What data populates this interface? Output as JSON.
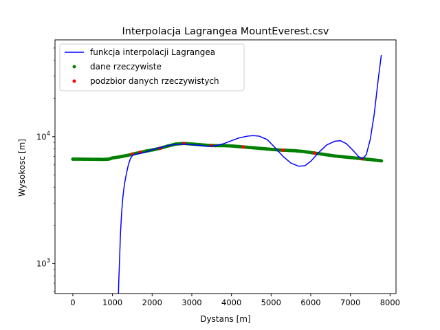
{
  "chart_data": {
    "type": "line",
    "title": "Interpolacja Lagrangea MountEverest.csv",
    "xlabel": "Dystans [m]",
    "ylabel": "Wysokosc [m]",
    "xlim": [
      -450,
      8150
    ],
    "ylim": [
      580,
      58000
    ],
    "yscale": "log",
    "x_ticks": [
      0,
      1000,
      2000,
      3000,
      4000,
      5000,
      6000,
      7000,
      8000
    ],
    "y_ticks": [
      {
        "value": 1000,
        "base": "10",
        "exp": "3"
      },
      {
        "value": 10000,
        "base": "10",
        "exp": "4"
      }
    ],
    "y_minor_ticks": [
      600,
      700,
      800,
      900,
      2000,
      3000,
      4000,
      5000,
      6000,
      7000,
      8000,
      9000,
      20000,
      30000,
      40000,
      50000
    ],
    "legend_position": "top-left",
    "legend": [
      {
        "label": "funkcja interpolacji Lagrangea",
        "marker": "line",
        "color": "#0000ff"
      },
      {
        "label": "dane rzeczywiste",
        "marker": "dot",
        "color": "#008000"
      },
      {
        "label": "podzbior danych rzeczywistych",
        "marker": "dot",
        "color": "#ff0000"
      }
    ],
    "series": [
      {
        "name": "funkcja interpolacji Lagrangea",
        "color": "#0000ff",
        "style": "line",
        "points": [
          [
            1150,
            580
          ],
          [
            1160,
            750
          ],
          [
            1180,
            1100
          ],
          [
            1200,
            1700
          ],
          [
            1230,
            2500
          ],
          [
            1260,
            3300
          ],
          [
            1300,
            4200
          ],
          [
            1350,
            5100
          ],
          [
            1400,
            6000
          ],
          [
            1450,
            6700
          ],
          [
            1500,
            7100
          ],
          [
            1600,
            7300
          ],
          [
            1800,
            7500
          ],
          [
            2000,
            7900
          ],
          [
            2200,
            8200
          ],
          [
            2400,
            8500
          ],
          [
            2600,
            8700
          ],
          [
            2800,
            8750
          ],
          [
            3000,
            8650
          ],
          [
            3200,
            8550
          ],
          [
            3400,
            8400
          ],
          [
            3600,
            8500
          ],
          [
            3800,
            8800
          ],
          [
            4000,
            9300
          ],
          [
            4200,
            9800
          ],
          [
            4400,
            10100
          ],
          [
            4550,
            10200
          ],
          [
            4700,
            10100
          ],
          [
            4900,
            9500
          ],
          [
            5100,
            8200
          ],
          [
            5300,
            7000
          ],
          [
            5500,
            6200
          ],
          [
            5700,
            5850
          ],
          [
            5850,
            5900
          ],
          [
            6000,
            6400
          ],
          [
            6200,
            7500
          ],
          [
            6400,
            8600
          ],
          [
            6600,
            9200
          ],
          [
            6750,
            9300
          ],
          [
            6900,
            8800
          ],
          [
            7050,
            7900
          ],
          [
            7200,
            7000
          ],
          [
            7300,
            6700
          ],
          [
            7400,
            7200
          ],
          [
            7500,
            9500
          ],
          [
            7600,
            15000
          ],
          [
            7700,
            28000
          ],
          [
            7780,
            44000
          ]
        ]
      },
      {
        "name": "dane rzeczywiste",
        "color": "#008000",
        "style": "scatter",
        "points": [
          [
            0,
            6650
          ],
          [
            200,
            6650
          ],
          [
            400,
            6640
          ],
          [
            600,
            6630
          ],
          [
            800,
            6620
          ],
          [
            900,
            6650
          ],
          [
            1000,
            6800
          ],
          [
            1200,
            6950
          ],
          [
            1400,
            7150
          ],
          [
            1600,
            7400
          ],
          [
            1800,
            7650
          ],
          [
            2000,
            7850
          ],
          [
            2200,
            8100
          ],
          [
            2400,
            8450
          ],
          [
            2600,
            8750
          ],
          [
            2800,
            8850
          ],
          [
            3000,
            8750
          ],
          [
            3200,
            8650
          ],
          [
            3400,
            8550
          ],
          [
            3600,
            8500
          ],
          [
            3800,
            8500
          ],
          [
            4000,
            8450
          ],
          [
            4200,
            8350
          ],
          [
            4400,
            8250
          ],
          [
            4600,
            8150
          ],
          [
            4800,
            8050
          ],
          [
            5000,
            7950
          ],
          [
            5200,
            7850
          ],
          [
            5400,
            7800
          ],
          [
            5600,
            7750
          ],
          [
            5800,
            7650
          ],
          [
            6000,
            7500
          ],
          [
            6200,
            7350
          ],
          [
            6400,
            7200
          ],
          [
            6600,
            7050
          ],
          [
            6800,
            6950
          ],
          [
            7000,
            6850
          ],
          [
            7200,
            6750
          ],
          [
            7400,
            6650
          ],
          [
            7600,
            6550
          ],
          [
            7780,
            6450
          ]
        ]
      },
      {
        "name": "podzbior danych rzeczywistych",
        "color": "#ff0000",
        "style": "scatter",
        "points": [
          [
            1500,
            7300
          ],
          [
            1700,
            7550
          ],
          [
            2200,
            8100
          ],
          [
            2800,
            8850
          ],
          [
            3500,
            8520
          ],
          [
            4300,
            8300
          ],
          [
            5300,
            7830
          ],
          [
            6100,
            7420
          ],
          [
            7300,
            6700
          ]
        ]
      }
    ]
  }
}
